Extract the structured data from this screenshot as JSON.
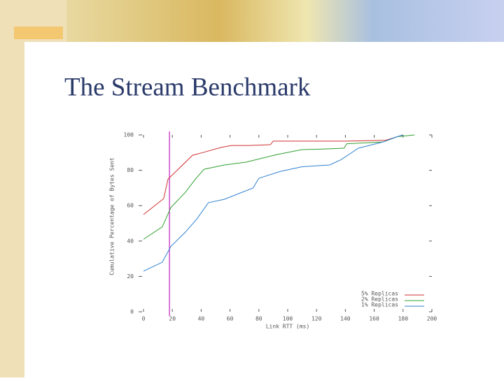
{
  "title": "The Stream Benchmark",
  "chart_data": {
    "type": "line",
    "xlabel": "Link RTT (ms)",
    "ylabel": "Cumulative Percentage of Bytes Sent",
    "xlim": [
      0,
      200
    ],
    "xticks": [
      0,
      20,
      40,
      60,
      80,
      100,
      120,
      140,
      160,
      180,
      200
    ],
    "ylim": [
      0,
      100
    ],
    "yticks": [
      0,
      20,
      40,
      60,
      80,
      100
    ],
    "reference_line": {
      "x": 18,
      "color": "#c020c0"
    },
    "legend": "lower right",
    "series": [
      {
        "name": "5% Replicas",
        "color": "#d03030",
        "x": [
          0,
          14,
          17,
          34,
          41,
          54,
          61,
          73,
          88,
          90,
          141,
          168,
          180
        ],
        "values": [
          55,
          64,
          75,
          88.5,
          90,
          93,
          94,
          94,
          94.5,
          96.5,
          96.5,
          97,
          100
        ]
      },
      {
        "name": "2% Replicas",
        "color": "#30a030",
        "x": [
          0,
          13,
          19,
          29,
          36,
          42,
          56,
          71,
          83,
          93,
          110,
          124,
          139,
          141,
          166,
          176,
          188
        ],
        "values": [
          41,
          48,
          59,
          67.5,
          75,
          80.6,
          83,
          84.6,
          87,
          89,
          91.7,
          92,
          92.5,
          95,
          96,
          99,
          100
        ]
      },
      {
        "name": "1% Replicas",
        "color": "#3080d0",
        "x": [
          0,
          13,
          19,
          29,
          37,
          45,
          56,
          76,
          80,
          95,
          110,
          129,
          137,
          149,
          166,
          176,
          180
        ],
        "values": [
          23,
          28,
          37,
          45,
          52.5,
          61.7,
          63.6,
          70,
          75.5,
          79.4,
          82,
          83,
          86,
          92.5,
          96,
          99,
          100
        ]
      }
    ]
  }
}
